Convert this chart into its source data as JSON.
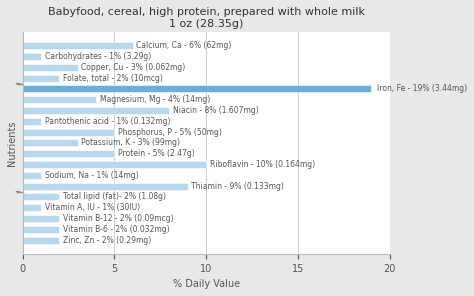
{
  "title": "Babyfood, cereal, high protein, prepared with whole milk\n1 oz (28.35g)",
  "xlabel": "% Daily Value",
  "ylabel": "Nutrients",
  "xlim": [
    0,
    20
  ],
  "xticks": [
    0,
    5,
    10,
    15,
    20
  ],
  "nutrients": [
    "Calcium, Ca - 6% (62mg)",
    "Carbohydrates - 1% (3.29g)",
    "Copper, Cu - 3% (0.062mg)",
    "Folate, total - 2% (10mcg)",
    "Iron, Fe - 19% (3.44mg)",
    "Magnesium, Mg - 4% (14mg)",
    "Niacin - 8% (1.607mg)",
    "Pantothenic acid - 1% (0.132mg)",
    "Phosphorus, P - 5% (50mg)",
    "Potassium, K - 3% (99mg)",
    "Protein - 5% (2.47g)",
    "Riboflavin - 10% (0.164mg)",
    "Sodium, Na - 1% (14mg)",
    "Thiamin - 9% (0.133mg)",
    "Total lipid (fat)- 2% (1.08g)",
    "Vitamin A, IU - 1% (30IU)",
    "Vitamin B-12 - 2% (0.09mcg)",
    "Vitamin B-6 - 2% (0.032mg)",
    "Zinc, Zn - 2% (0.29mg)"
  ],
  "values": [
    6,
    1,
    3,
    2,
    19,
    4,
    8,
    1,
    5,
    3,
    5,
    10,
    1,
    9,
    2,
    1,
    2,
    2,
    2
  ],
  "bar_color": "#b8d8ee",
  "iron_bar_color": "#6baed6",
  "bg_color": "#e8e8e8",
  "plot_bg_color": "#ffffff",
  "title_fontsize": 8,
  "label_fontsize": 5.5,
  "axis_label_fontsize": 7,
  "tick_fontsize": 7,
  "grid_color": "#bbbbbb",
  "text_color": "#555555",
  "group_separator_indices": [
    3,
    13
  ],
  "iron_index": 4
}
